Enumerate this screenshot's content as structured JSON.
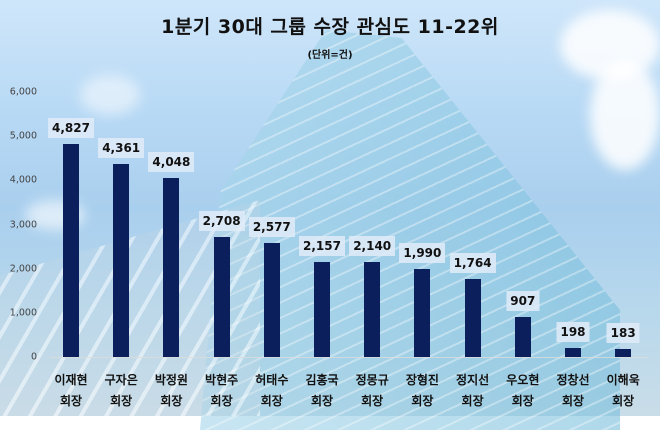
{
  "chart_data": {
    "type": "bar",
    "title": "1분기 30대 그룹 수장 관심도 11-22위",
    "subtitle": "(단위=건)",
    "xlabel": "",
    "ylabel": "",
    "ylim": [
      0,
      6000
    ],
    "yticks": [
      "6,000",
      "5,000",
      "4,000",
      "3,000",
      "2,000",
      "1,000",
      "0"
    ],
    "grid": false,
    "legend": null,
    "bar_color": "#0a1f5c",
    "categories": [
      {
        "name": "이재현",
        "title": "회장"
      },
      {
        "name": "구자은",
        "title": "회장"
      },
      {
        "name": "박정원",
        "title": "회장"
      },
      {
        "name": "박현주",
        "title": "회장"
      },
      {
        "name": "허태수",
        "title": "회장"
      },
      {
        "name": "김홍국",
        "title": "회장"
      },
      {
        "name": "정몽규",
        "title": "회장"
      },
      {
        "name": "장형진",
        "title": "회장"
      },
      {
        "name": "정지선",
        "title": "회장"
      },
      {
        "name": "우오현",
        "title": "회장"
      },
      {
        "name": "정창선",
        "title": "회장"
      },
      {
        "name": "이해욱",
        "title": "회장"
      }
    ],
    "values": [
      4827,
      4361,
      4048,
      2708,
      2577,
      2157,
      2140,
      1990,
      1764,
      907,
      198,
      183
    ],
    "value_labels": [
      "4,827",
      "4,361",
      "4,048",
      "2,708",
      "2,577",
      "2,157",
      "2,140",
      "1,990",
      "1,764",
      "907",
      "198",
      "183"
    ]
  }
}
